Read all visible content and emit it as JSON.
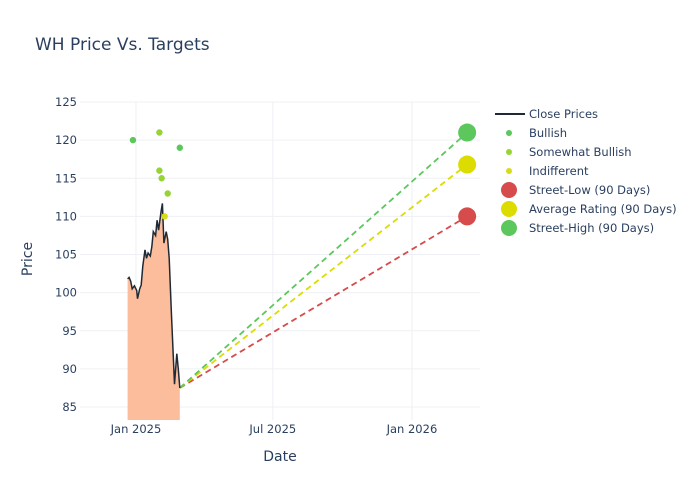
{
  "chart_data": {
    "type": "line",
    "title": "WH Price Vs. Targets",
    "xlabel": "Date",
    "ylabel": "Price",
    "ylim": [
      83.3,
      125
    ],
    "xlim": [
      "2024-10-19",
      "2026-04-01"
    ],
    "x_ticks": [
      {
        "date": "2025-01-01",
        "label": "Jan 2025"
      },
      {
        "date": "2025-07-01",
        "label": "Jul 2025"
      },
      {
        "date": "2026-01-01",
        "label": "Jan 2026"
      }
    ],
    "y_ticks": [
      85,
      90,
      95,
      100,
      105,
      110,
      115,
      120,
      125
    ],
    "grid": true,
    "legend_position": "right",
    "close_prices": {
      "name": "Close Prices",
      "color": "#1f2a36",
      "fill_color": "#fcbd9c",
      "points": [
        [
          "2024-12-21",
          101.8
        ],
        [
          "2024-12-23",
          102.0
        ],
        [
          "2024-12-25",
          101.5
        ],
        [
          "2024-12-27",
          100.5
        ],
        [
          "2024-12-30",
          100.9
        ],
        [
          "2025-01-02",
          100.3
        ],
        [
          "2025-01-03",
          99.2
        ],
        [
          "2025-01-06",
          100.5
        ],
        [
          "2025-01-08",
          101.0
        ],
        [
          "2025-01-10",
          103.5
        ],
        [
          "2025-01-13",
          105.6
        ],
        [
          "2025-01-15",
          104.5
        ],
        [
          "2025-01-17",
          105.2
        ],
        [
          "2025-01-20",
          104.8
        ],
        [
          "2025-01-22",
          106.0
        ],
        [
          "2025-01-24",
          108.0
        ],
        [
          "2025-01-27",
          107.5
        ],
        [
          "2025-01-29",
          109.5
        ],
        [
          "2025-01-31",
          108.2
        ],
        [
          "2025-02-03",
          110.5
        ],
        [
          "2025-02-05",
          111.7
        ],
        [
          "2025-02-07",
          106.5
        ],
        [
          "2025-02-10",
          108.0
        ],
        [
          "2025-02-12",
          107.0
        ],
        [
          "2025-02-14",
          104.5
        ],
        [
          "2025-02-17",
          97.0
        ],
        [
          "2025-02-19",
          92.5
        ],
        [
          "2025-02-21",
          88.0
        ],
        [
          "2025-02-24",
          92.0
        ],
        [
          "2025-02-26",
          90.0
        ],
        [
          "2025-02-28",
          87.5
        ]
      ]
    },
    "analyst_ratings": [
      {
        "name": "Bullish",
        "color": "#5cc75c",
        "points": [
          [
            "2024-12-28",
            120
          ],
          [
            "2025-02-28",
            119
          ]
        ]
      },
      {
        "name": "Somewhat Bullish",
        "color": "#96d435",
        "points": [
          [
            "2025-02-01",
            121
          ],
          [
            "2025-02-01",
            116
          ],
          [
            "2025-02-04",
            115
          ],
          [
            "2025-02-12",
            113
          ]
        ]
      },
      {
        "name": "Indifferent",
        "color": "#d7dc1a",
        "points": [
          [
            "2025-02-08",
            110
          ]
        ]
      }
    ],
    "targets": {
      "start": [
        "2025-02-28",
        87.5
      ],
      "end_date": "2026-03-15",
      "series": [
        {
          "name": "Street-Low (90 Days)",
          "value": 110,
          "color": "#d64b4b"
        },
        {
          "name": "Average Rating (90 Days)",
          "value": 116.8,
          "color": "#dcdc00"
        },
        {
          "name": "Street-High (90 Days)",
          "value": 121,
          "color": "#5cc75c"
        }
      ]
    },
    "legend": [
      {
        "label": "Close Prices",
        "kind": "line",
        "color": "#1f2a36"
      },
      {
        "label": "Bullish",
        "kind": "dot",
        "color": "#5cc75c"
      },
      {
        "label": "Somewhat Bullish",
        "kind": "dot",
        "color": "#96d435"
      },
      {
        "label": "Indifferent",
        "kind": "dot",
        "color": "#d7dc1a"
      },
      {
        "label": "Street-Low (90 Days)",
        "kind": "big-dot",
        "color": "#d64b4b"
      },
      {
        "label": "Average Rating (90 Days)",
        "kind": "big-dot",
        "color": "#dcdc00"
      },
      {
        "label": "Street-High (90 Days)",
        "kind": "big-dot",
        "color": "#5cc75c"
      }
    ]
  }
}
